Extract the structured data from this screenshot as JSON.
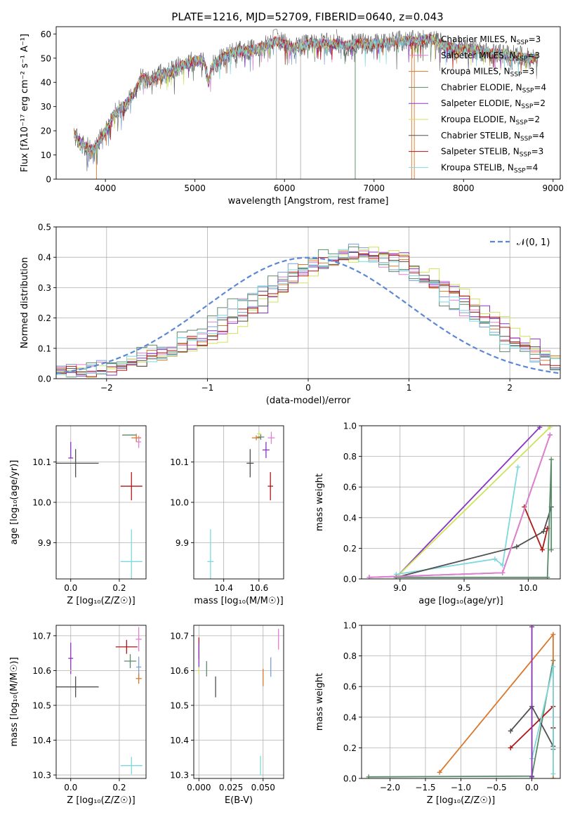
{
  "figure": {
    "title": "PLATE=1216, MJD=52709, FIBERID=0640, z=0.043"
  },
  "chart_data": [
    {
      "id": "spectrum",
      "type": "line",
      "xlabel": "wavelength [Angstrom, rest frame]",
      "ylabel": "Flux [fλ10⁻¹⁷ erg cm⁻² s⁻¹ A⁻¹]",
      "xlim": [
        3450,
        9080
      ],
      "ylim": [
        0,
        63
      ],
      "xticks": [
        4000,
        5000,
        6000,
        7000,
        8000,
        9000
      ],
      "yticks": [
        0,
        10,
        20,
        30,
        40,
        50,
        60
      ],
      "grid": false,
      "legend": "right",
      "continuum_x": [
        3650,
        3700,
        3800,
        3880,
        3950,
        4000,
        4100,
        4200,
        4300,
        4400,
        4500,
        4600,
        4700,
        4800,
        4900,
        5000,
        5100,
        5150,
        5200,
        5300,
        5400,
        5500,
        5600,
        5700,
        5800,
        5900,
        6000,
        6100,
        6200,
        6300,
        6400,
        6500,
        6600,
        6700,
        6800,
        6900,
        7000,
        7100,
        7200,
        7300,
        7400,
        7500,
        7600,
        7700,
        7800,
        7900,
        8000,
        8100,
        8200,
        8300,
        8400,
        8500,
        8600,
        8700,
        8830
      ],
      "continuum_y": [
        19,
        16,
        13,
        12,
        17,
        20,
        27,
        30,
        34,
        42,
        41,
        43,
        44,
        46,
        48,
        49,
        49,
        40,
        47,
        50,
        52,
        53,
        53,
        54,
        55,
        57,
        56,
        54,
        55,
        56,
        56,
        56,
        56,
        55,
        56,
        56,
        56,
        56,
        57,
        57,
        57,
        57,
        58,
        57,
        55,
        54,
        54,
        54,
        53,
        52,
        52,
        51,
        51,
        50,
        50
      ],
      "series": [
        {
          "name": "Chabrier MILES, N<sub>SSP</sub>=3",
          "label": "Chabrier MILES, N",
          "sub": "SSP",
          "suffix": "=3",
          "color": "#7b9fd4"
        },
        {
          "name": "Salpeter MILES, N_SSP=3",
          "label": "Salpeter MILES, N",
          "sub": "SSP",
          "suffix": "=3",
          "color": "#e27fd2"
        },
        {
          "name": "Kroupa MILES, N_SSP=3",
          "label": "Kroupa MILES, N",
          "sub": "SSP",
          "suffix": "=3",
          "color": "#d9782d"
        },
        {
          "name": "Chabrier ELODIE, N_SSP=4",
          "label": "Chabrier ELODIE, N",
          "sub": "SSP",
          "suffix": "=4",
          "color": "#5b8a6a"
        },
        {
          "name": "Salpeter ELODIE, N_SSP=2",
          "label": "Salpeter ELODIE, N",
          "sub": "SSP",
          "suffix": "=2",
          "color": "#8a33c2"
        },
        {
          "name": "Kroupa ELODIE, N_SSP=2",
          "label": "Kroupa ELODIE, N",
          "sub": "SSP",
          "suffix": "=2",
          "color": "#cde35c"
        },
        {
          "name": "Chabrier STELIB, N_SSP=4",
          "label": "Chabrier STELIB, N",
          "sub": "SSP",
          "suffix": "=4",
          "color": "#505050"
        },
        {
          "name": "Salpeter STELIB, N_SSP=3",
          "label": "Salpeter STELIB, N",
          "sub": "SSP",
          "suffix": "=3",
          "color": "#b01616"
        },
        {
          "name": "Kroupa STELIB, N_SSP=4",
          "label": "Kroupa STELIB, N",
          "sub": "SSP",
          "suffix": "=4",
          "color": "#7fd8dc"
        }
      ]
    },
    {
      "id": "residuals",
      "type": "line",
      "xlabel": "(data-model)/error",
      "ylabel": "Normed distribution",
      "xlim": [
        -2.5,
        2.5
      ],
      "ylim": [
        0,
        0.5
      ],
      "xticks": [
        -2,
        -1,
        0,
        1,
        2
      ],
      "yticks": [
        0.0,
        0.1,
        0.2,
        0.3,
        0.4,
        0.5
      ],
      "ytick_labels": [
        "0.0",
        "0.1",
        "0.2",
        "0.3",
        "0.4",
        "0.5"
      ],
      "xtick_labels": [
        "−2",
        "−1",
        "0",
        "1",
        "2"
      ],
      "grid": true,
      "legend": "top-right",
      "gaussian_label": "𝒩(0, 1)",
      "gaussian_color": "#5b87d6",
      "hist_bin_edges": [
        -2.5,
        -2.4,
        -2.3,
        -2.2,
        -2.1,
        -2.0,
        -1.9,
        -1.8,
        -1.7,
        -1.6,
        -1.5,
        -1.4,
        -1.3,
        -1.2,
        -1.1,
        -1.0,
        -0.9,
        -0.8,
        -0.7,
        -0.6,
        -0.5,
        -0.4,
        -0.3,
        -0.2,
        -0.1,
        0.0,
        0.1,
        0.2,
        0.3,
        0.4,
        0.5,
        0.6,
        0.7,
        0.8,
        0.9,
        1.0,
        1.1,
        1.2,
        1.3,
        1.4,
        1.5,
        1.6,
        1.7,
        1.8,
        1.9,
        2.0,
        2.1,
        2.2,
        2.3,
        2.4,
        2.5
      ],
      "hist_base": [
        0.02,
        0.025,
        0.03,
        0.035,
        0.04,
        0.045,
        0.05,
        0.06,
        0.07,
        0.08,
        0.09,
        0.1,
        0.12,
        0.13,
        0.15,
        0.17,
        0.19,
        0.21,
        0.24,
        0.26,
        0.29,
        0.31,
        0.33,
        0.36,
        0.37,
        0.38,
        0.39,
        0.4,
        0.41,
        0.42,
        0.41,
        0.4,
        0.39,
        0.38,
        0.36,
        0.34,
        0.32,
        0.3,
        0.27,
        0.25,
        0.22,
        0.2,
        0.18,
        0.15,
        0.13,
        0.11,
        0.09,
        0.07,
        0.06,
        0.05
      ],
      "hist_shifts": [
        0.0,
        0.05,
        0.1,
        -0.05,
        0.15,
        0.25,
        0.08,
        0.12,
        -0.02
      ]
    },
    {
      "id": "age-vs-Z",
      "type": "scatter",
      "xlabel": "Z [log₁₀(Z/Z☉)]",
      "ylabel": "age  [log₁₀(age/yr)]",
      "xlim": [
        -0.06,
        0.31
      ],
      "ylim": [
        9.81,
        10.19
      ],
      "xticks": [
        0.0,
        0.2
      ],
      "xtick_labels": [
        "0.0",
        "0.2"
      ],
      "yticks": [
        9.9,
        10.0,
        10.1
      ],
      "ytick_labels": [
        "9.9",
        "10.0",
        "10.1"
      ],
      "grid": true,
      "points": [
        {
          "x": 0.02,
          "y": 10.097,
          "xerr": 0.095,
          "yerr": 0.035,
          "color": "#505050"
        },
        {
          "x": 0.0,
          "y": 10.13,
          "xerr": 0.0,
          "yerr": 0.02,
          "color": "#8a33c2"
        },
        {
          "x": 0.0,
          "y": 10.11,
          "xerr": 0.01,
          "yerr": 0.0,
          "color": "#8a33c2"
        },
        {
          "x": 0.25,
          "y": 10.04,
          "xerr": 0.045,
          "yerr": 0.035,
          "color": "#b01616"
        },
        {
          "x": 0.25,
          "y": 9.853,
          "xerr": 0.045,
          "yerr": 0.08,
          "color": "#7fd8dc"
        },
        {
          "x": 0.24,
          "y": 10.167,
          "xerr": 0.028,
          "yerr": 0.0,
          "color": "#5b8a6a"
        },
        {
          "x": 0.27,
          "y": 10.16,
          "xerr": 0.02,
          "yerr": 0.01,
          "color": "#d9782d"
        },
        {
          "x": 0.28,
          "y": 10.15,
          "xerr": 0.01,
          "yerr": 0.015,
          "color": "#e27fd2"
        }
      ]
    },
    {
      "id": "age-vs-mass",
      "type": "scatter",
      "xlabel": "mass [log₁₀(M/M☉)]",
      "ylabel": "",
      "xlim": [
        10.23,
        10.74
      ],
      "ylim": [
        9.81,
        10.19
      ],
      "xticks": [
        10.4,
        10.6
      ],
      "xtick_labels": [
        "10.4",
        "10.6"
      ],
      "yticks": [
        9.9,
        10.0,
        10.1
      ],
      "ytick_labels": [
        "9.9",
        "10.0",
        "10.1"
      ],
      "grid": true,
      "points": [
        {
          "x": 10.55,
          "y": 10.097,
          "xerr": 0.02,
          "yerr": 0.035,
          "color": "#505050"
        },
        {
          "x": 10.665,
          "y": 10.04,
          "xerr": 0.015,
          "yerr": 0.035,
          "color": "#b01616"
        },
        {
          "x": 10.325,
          "y": 9.853,
          "xerr": 0.018,
          "yerr": 0.08,
          "color": "#7fd8dc"
        },
        {
          "x": 10.585,
          "y": 10.16,
          "xerr": 0.025,
          "yerr": 0.006,
          "color": "#d9782d"
        },
        {
          "x": 10.61,
          "y": 10.162,
          "xerr": 0.02,
          "yerr": 0.007,
          "color": "#5b8a6a"
        },
        {
          "x": 10.67,
          "y": 10.16,
          "xerr": 0.02,
          "yerr": 0.015,
          "color": "#e27fd2"
        },
        {
          "x": 10.64,
          "y": 10.13,
          "xerr": 0.02,
          "yerr": 0.02,
          "color": "#8a33c2"
        },
        {
          "x": 10.6,
          "y": 10.17,
          "xerr": 0.01,
          "yerr": 0.005,
          "color": "#cde35c"
        }
      ]
    },
    {
      "id": "weight-vs-age",
      "type": "line",
      "xlabel": "age  [log₁₀(age/yr)]",
      "ylabel": "mass weight",
      "xlim": [
        8.7,
        10.25
      ],
      "ylim": [
        0,
        1
      ],
      "xticks": [
        9.0,
        9.5,
        10.0
      ],
      "xtick_labels": [
        "9.0",
        "9.5",
        "10.0"
      ],
      "yticks": [
        0.0,
        0.2,
        0.4,
        0.6,
        0.8,
        1.0
      ],
      "ytick_labels": [
        "0.0",
        "0.2",
        "0.4",
        "0.6",
        "0.8",
        "1.0"
      ],
      "grid": true,
      "series": [
        {
          "color": "#8a33c2",
          "x": [
            8.97,
            10.09
          ],
          "y": [
            0.01,
            0.99
          ]
        },
        {
          "color": "#cde35c",
          "x": [
            8.97,
            10.17
          ],
          "y": [
            0.01,
            0.99
          ]
        },
        {
          "color": "#7fd8dc",
          "x": [
            8.97,
            9.74,
            9.8,
            9.92
          ],
          "y": [
            0.03,
            0.13,
            0.09,
            0.73
          ]
        },
        {
          "color": "#505050",
          "x": [
            8.97,
            9.91,
            10.12,
            10.18
          ],
          "y": [
            0.01,
            0.21,
            0.31,
            0.47
          ]
        },
        {
          "color": "#b01616",
          "x": [
            9.97,
            10.11,
            10.15,
            10.15
          ],
          "y": [
            0.47,
            0.19,
            0.33,
            0.33
          ]
        },
        {
          "color": "#5b8a6a",
          "x": [
            8.97,
            10.15,
            10.18,
            10.18
          ],
          "y": [
            0.01,
            0.01,
            0.78,
            0.19
          ]
        },
        {
          "color": "#d9782d",
          "x": [
            8.76,
            9.8,
            10.17
          ],
          "y": [
            0.01,
            0.04,
            0.94
          ]
        },
        {
          "color": "#7b9fd4",
          "x": [
            8.76,
            9.8,
            10.17
          ],
          "y": [
            0.01,
            0.04,
            0.94
          ]
        },
        {
          "color": "#e27fd2",
          "x": [
            8.76,
            9.8,
            10.17
          ],
          "y": [
            0.01,
            0.04,
            0.94
          ]
        }
      ]
    },
    {
      "id": "mass-vs-Z",
      "type": "scatter",
      "xlabel": "Z [log₁₀(Z/Z☉)]",
      "ylabel": "mass [log₁₀(M/M☉)]",
      "xlim": [
        -0.06,
        0.31
      ],
      "ylim": [
        10.29,
        10.73
      ],
      "xticks": [
        0.0,
        0.2
      ],
      "xtick_labels": [
        "0.0",
        "0.2"
      ],
      "yticks": [
        10.3,
        10.4,
        10.5,
        10.6,
        10.7
      ],
      "ytick_labels": [
        "10.3",
        "10.4",
        "10.5",
        "10.6",
        "10.7"
      ],
      "grid": true,
      "points": [
        {
          "x": 0.02,
          "y": 10.553,
          "xerr": 0.095,
          "yerr": 0.03,
          "color": "#505050"
        },
        {
          "x": 0.0,
          "y": 10.635,
          "xerr": 0.01,
          "yerr": 0.045,
          "color": "#8a33c2"
        },
        {
          "x": 0.0,
          "y": 10.6,
          "xerr": 0.005,
          "yerr": 0.0,
          "color": "#cde35c"
        },
        {
          "x": 0.23,
          "y": 10.668,
          "xerr": 0.045,
          "yerr": 0.02,
          "color": "#b01616"
        },
        {
          "x": 0.25,
          "y": 10.327,
          "xerr": 0.045,
          "yerr": 0.025,
          "color": "#7fd8dc"
        },
        {
          "x": 0.245,
          "y": 10.627,
          "xerr": 0.025,
          "yerr": 0.02,
          "color": "#5b8a6a"
        },
        {
          "x": 0.28,
          "y": 10.69,
          "xerr": 0.012,
          "yerr": 0.035,
          "color": "#e27fd2"
        },
        {
          "x": 0.28,
          "y": 10.61,
          "xerr": 0.01,
          "yerr": 0.03,
          "color": "#7b9fd4"
        },
        {
          "x": 0.28,
          "y": 10.577,
          "xerr": 0.012,
          "yerr": 0.015,
          "color": "#d9782d"
        }
      ]
    },
    {
      "id": "mass-vs-EBV",
      "type": "scatter",
      "xlabel": "E(B-V)",
      "ylabel": "",
      "xlim": [
        -0.004,
        0.066
      ],
      "ylim": [
        10.29,
        10.73
      ],
      "xticks": [
        0.0,
        0.025,
        0.05
      ],
      "xtick_labels": [
        "0.000",
        "0.025",
        "0.050"
      ],
      "yticks": [
        10.3,
        10.4,
        10.5,
        10.6,
        10.7
      ],
      "ytick_labels": [
        "10.3",
        "10.4",
        "10.5",
        "10.6",
        "10.7"
      ],
      "grid": true,
      "points": [
        {
          "x": 0.0,
          "y": 10.665,
          "xerr": 0.0,
          "yerr": 0.03,
          "color": "#b01616"
        },
        {
          "x": 0.0,
          "y": 10.645,
          "xerr": 0.0,
          "yerr": 0.035,
          "color": "#8a33c2"
        },
        {
          "x": 0.0,
          "y": 10.6,
          "xerr": 0.0,
          "yerr": 0.01,
          "color": "#cde35c"
        },
        {
          "x": 0.006,
          "y": 10.605,
          "xerr": 0.0,
          "yerr": 0.022,
          "color": "#5b8a6a"
        },
        {
          "x": 0.013,
          "y": 10.553,
          "xerr": 0.0,
          "yerr": 0.03,
          "color": "#505050"
        },
        {
          "x": 0.048,
          "y": 10.327,
          "xerr": 0.0,
          "yerr": 0.028,
          "color": "#7fd8dc"
        },
        {
          "x": 0.05,
          "y": 10.58,
          "xerr": 0.0,
          "yerr": 0.025,
          "color": "#d9782d"
        },
        {
          "x": 0.056,
          "y": 10.61,
          "xerr": 0.0,
          "yerr": 0.028,
          "color": "#7b9fd4"
        },
        {
          "x": 0.062,
          "y": 10.69,
          "xerr": 0.0,
          "yerr": 0.03,
          "color": "#e27fd2"
        }
      ]
    },
    {
      "id": "weight-vs-Z",
      "type": "line",
      "xlabel": "Z [log₁₀(Z/Z☉)]",
      "ylabel": "mass weight",
      "xlim": [
        -2.4,
        0.4
      ],
      "ylim": [
        0,
        1
      ],
      "xticks": [
        -2.0,
        -1.5,
        -1.0,
        -0.5,
        0.0
      ],
      "xtick_labels": [
        "−2.0",
        "−1.5",
        "−1.0",
        "−0.5",
        "0.0"
      ],
      "yticks": [
        0.0,
        0.2,
        0.4,
        0.6,
        0.8,
        1.0
      ],
      "ytick_labels": [
        "0.0",
        "0.2",
        "0.4",
        "0.6",
        "0.8",
        "1.0"
      ],
      "grid": true,
      "series": [
        {
          "color": "#cde35c",
          "x": [
            0.0,
            0.0
          ],
          "y": [
            0.0,
            1.0
          ]
        },
        {
          "color": "#5b8a6a",
          "x": [
            -2.3,
            0.0,
            0.3,
            0.3
          ],
          "y": [
            0.01,
            0.015,
            0.77,
            0.19
          ]
        },
        {
          "color": "#d9782d",
          "x": [
            -1.3,
            0.3,
            0.3
          ],
          "y": [
            0.04,
            0.94,
            0.0
          ]
        },
        {
          "color": "#505050",
          "x": [
            -0.3,
            0.0,
            0.3,
            0.3
          ],
          "y": [
            0.31,
            0.47,
            0.21,
            0.33
          ]
        },
        {
          "color": "#b01616",
          "x": [
            -0.3,
            0.3,
            0.3
          ],
          "y": [
            0.2,
            0.47,
            0.33
          ]
        },
        {
          "color": "#7fd8dc",
          "x": [
            0.0,
            0.3,
            0.3
          ],
          "y": [
            0.13,
            0.73,
            0.03
          ]
        },
        {
          "color": "#8a33c2",
          "x": [
            0.0,
            0.0
          ],
          "y": [
            0.01,
            0.99
          ]
        }
      ]
    }
  ]
}
